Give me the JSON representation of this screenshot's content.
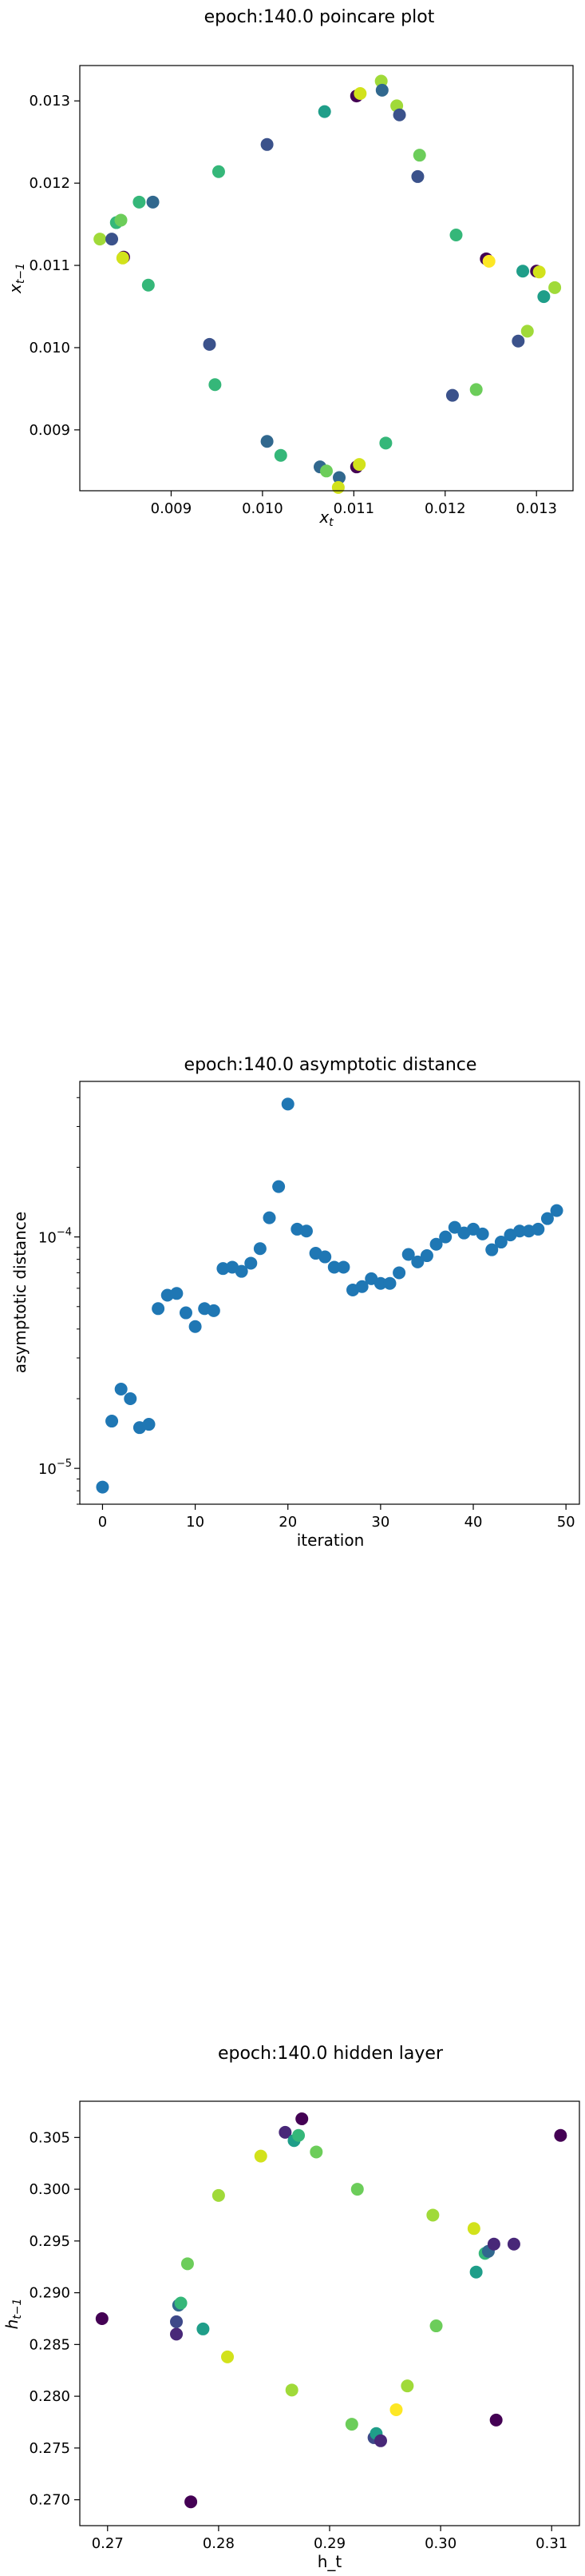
{
  "page": {
    "background": "#ffffff"
  },
  "chart_data": [
    {
      "type": "scatter",
      "title": "epoch:140.0 poincare plot",
      "xlabel": "x_t",
      "ylabel": "x_{t-1}",
      "xlim": [
        0.008,
        0.0134
      ],
      "ylim": [
        0.00826,
        0.01343
      ],
      "xticks": [
        "0.009",
        "0.010",
        "0.011",
        "0.012",
        "0.013"
      ],
      "yticks": [
        "0.009",
        "0.010",
        "0.011",
        "0.012",
        "0.013"
      ],
      "colormap": "viridis",
      "points": [
        {
          "x": 0.00822,
          "y": 0.01132,
          "c": "#a0da39"
        },
        {
          "x": 0.00835,
          "y": 0.01132,
          "c": "#3b528b"
        },
        {
          "x": 0.0084,
          "y": 0.01152,
          "c": "#35b779"
        },
        {
          "x": 0.00845,
          "y": 0.01155,
          "c": "#6ccd5a"
        },
        {
          "x": 0.00848,
          "y": 0.0111,
          "c": "#440154"
        },
        {
          "x": 0.00847,
          "y": 0.01109,
          "c": "#d2e21b"
        },
        {
          "x": 0.00865,
          "y": 0.01177,
          "c": "#35b779"
        },
        {
          "x": 0.0088,
          "y": 0.01177,
          "c": "#31688e"
        },
        {
          "x": 0.00875,
          "y": 0.01076,
          "c": "#35b779"
        },
        {
          "x": 0.00942,
          "y": 0.01004,
          "c": "#3b528b"
        },
        {
          "x": 0.00948,
          "y": 0.00955,
          "c": "#35b779"
        },
        {
          "x": 0.00952,
          "y": 0.01214,
          "c": "#35b779"
        },
        {
          "x": 0.01005,
          "y": 0.01247,
          "c": "#3b528b"
        },
        {
          "x": 0.01005,
          "y": 0.00886,
          "c": "#31688e"
        },
        {
          "x": 0.0102,
          "y": 0.00869,
          "c": "#35b779"
        },
        {
          "x": 0.01068,
          "y": 0.01287,
          "c": "#1f9e89"
        },
        {
          "x": 0.01063,
          "y": 0.00855,
          "c": "#31688e"
        },
        {
          "x": 0.0107,
          "y": 0.0085,
          "c": "#6ccd5a"
        },
        {
          "x": 0.01084,
          "y": 0.00842,
          "c": "#31688e"
        },
        {
          "x": 0.01083,
          "y": 0.0083,
          "c": "#d2e21b"
        },
        {
          "x": 0.01103,
          "y": 0.01306,
          "c": "#440154"
        },
        {
          "x": 0.01107,
          "y": 0.01309,
          "c": "#d2e21b"
        },
        {
          "x": 0.01103,
          "y": 0.00855,
          "c": "#440154"
        },
        {
          "x": 0.01106,
          "y": 0.00858,
          "c": "#d2e21b"
        },
        {
          "x": 0.0113,
          "y": 0.01324,
          "c": "#a0da39"
        },
        {
          "x": 0.01131,
          "y": 0.01313,
          "c": "#31688e"
        },
        {
          "x": 0.01147,
          "y": 0.01294,
          "c": "#a0da39"
        },
        {
          "x": 0.0115,
          "y": 0.01283,
          "c": "#3b528b"
        },
        {
          "x": 0.01135,
          "y": 0.00884,
          "c": "#35b779"
        },
        {
          "x": 0.01172,
          "y": 0.01234,
          "c": "#6ccd5a"
        },
        {
          "x": 0.0117,
          "y": 0.01208,
          "c": "#3b528b"
        },
        {
          "x": 0.01208,
          "y": 0.00942,
          "c": "#3b528b"
        },
        {
          "x": 0.01212,
          "y": 0.01137,
          "c": "#35b779"
        },
        {
          "x": 0.01234,
          "y": 0.00949,
          "c": "#6ccd5a"
        },
        {
          "x": 0.01245,
          "y": 0.01108,
          "c": "#440154"
        },
        {
          "x": 0.01248,
          "y": 0.01105,
          "c": "#fde725"
        },
        {
          "x": 0.0128,
          "y": 0.01008,
          "c": "#3b528b"
        },
        {
          "x": 0.01285,
          "y": 0.01093,
          "c": "#1f9e89"
        },
        {
          "x": 0.0129,
          "y": 0.0102,
          "c": "#a0da39"
        },
        {
          "x": 0.013,
          "y": 0.01093,
          "c": "#440154"
        },
        {
          "x": 0.01303,
          "y": 0.01092,
          "c": "#d2e21b"
        },
        {
          "x": 0.01308,
          "y": 0.01062,
          "c": "#1f9e89"
        },
        {
          "x": 0.0132,
          "y": 0.01073,
          "c": "#a0da39"
        }
      ]
    },
    {
      "type": "scatter",
      "title": "epoch:140.0 asymptotic distance",
      "xlabel": "iteration",
      "ylabel": "asymptotic distance",
      "xlim": [
        -2.45,
        51.45
      ],
      "ylim": [
        7e-06,
        0.00047
      ],
      "yscale": "log",
      "xticks": [
        0,
        10,
        20,
        30,
        40,
        50
      ],
      "yticks": [
        {
          "value": 1e-05,
          "base": "10",
          "exp": "−5"
        },
        {
          "value": 0.0001,
          "base": "10",
          "exp": "−4"
        }
      ],
      "color": "#1f77b4",
      "x": [
        0,
        1,
        2,
        3,
        4,
        5,
        6,
        7,
        8,
        9,
        10,
        11,
        12,
        13,
        14,
        15,
        16,
        17,
        18,
        19,
        20,
        21,
        22,
        23,
        24,
        25,
        26,
        27,
        28,
        29,
        30,
        31,
        32,
        33,
        34,
        35,
        36,
        37,
        38,
        39,
        40,
        41,
        42,
        43,
        44,
        45,
        46,
        47,
        48,
        49
      ],
      "y": [
        8.3e-06,
        1.6e-05,
        2.2e-05,
        2e-05,
        1.5e-05,
        1.55e-05,
        4.9e-05,
        5.6e-05,
        5.7e-05,
        4.7e-05,
        4.1e-05,
        4.9e-05,
        4.8e-05,
        7.3e-05,
        7.4e-05,
        7.1e-05,
        7.7e-05,
        8.9e-05,
        0.000121,
        0.000165,
        0.000375,
        0.000108,
        0.000106,
        8.5e-05,
        8.2e-05,
        7.4e-05,
        7.4e-05,
        5.9e-05,
        6.1e-05,
        6.6e-05,
        6.3e-05,
        6.3e-05,
        7e-05,
        8.4e-05,
        7.8e-05,
        8.3e-05,
        9.3e-05,
        0.0001,
        0.00011,
        0.000104,
        0.000108,
        0.000103,
        8.8e-05,
        9.5e-05,
        0.000102,
        0.000106,
        0.000106,
        0.000108,
        0.00012,
        0.00013
      ]
    },
    {
      "type": "scatter",
      "title": "epoch:140.0 hidden layer",
      "xlabel": "h_t",
      "ylabel": "h_{t-1}",
      "xlim": [
        0.2675,
        0.3125
      ],
      "ylim": [
        0.2675,
        0.3085
      ],
      "xticks": [
        "0.27",
        "0.28",
        "0.29",
        "0.30",
        "0.31"
      ],
      "yticks": [
        "0.270",
        "0.275",
        "0.280",
        "0.285",
        "0.290",
        "0.295",
        "0.300",
        "0.305"
      ],
      "colormap": "viridis",
      "points": [
        {
          "x": 0.2695,
          "y": 0.2875,
          "c": "#440154"
        },
        {
          "x": 0.2775,
          "y": 0.2698,
          "c": "#440154"
        },
        {
          "x": 0.2762,
          "y": 0.286,
          "c": "#482878"
        },
        {
          "x": 0.2762,
          "y": 0.2872,
          "c": "#3e4989"
        },
        {
          "x": 0.2764,
          "y": 0.2888,
          "c": "#31688e"
        },
        {
          "x": 0.2766,
          "y": 0.289,
          "c": "#35b779"
        },
        {
          "x": 0.2772,
          "y": 0.2928,
          "c": "#6ccd5a"
        },
        {
          "x": 0.2786,
          "y": 0.2865,
          "c": "#1f9e89"
        },
        {
          "x": 0.28,
          "y": 0.2994,
          "c": "#a0da39"
        },
        {
          "x": 0.2808,
          "y": 0.2838,
          "c": "#d2e21b"
        },
        {
          "x": 0.2838,
          "y": 0.3032,
          "c": "#d2e21b"
        },
        {
          "x": 0.286,
          "y": 0.3055,
          "c": "#482878"
        },
        {
          "x": 0.2868,
          "y": 0.3047,
          "c": "#1f9e89"
        },
        {
          "x": 0.2872,
          "y": 0.3052,
          "c": "#35b779"
        },
        {
          "x": 0.2866,
          "y": 0.2806,
          "c": "#a0da39"
        },
        {
          "x": 0.2875,
          "y": 0.3068,
          "c": "#440154"
        },
        {
          "x": 0.2888,
          "y": 0.3036,
          "c": "#6ccd5a"
        },
        {
          "x": 0.292,
          "y": 0.2773,
          "c": "#6ccd5a"
        },
        {
          "x": 0.2925,
          "y": 0.3,
          "c": "#6ccd5a"
        },
        {
          "x": 0.294,
          "y": 0.276,
          "c": "#3e4989"
        },
        {
          "x": 0.2942,
          "y": 0.2764,
          "c": "#1f9e89"
        },
        {
          "x": 0.2946,
          "y": 0.2757,
          "c": "#482878"
        },
        {
          "x": 0.296,
          "y": 0.2787,
          "c": "#fde725"
        },
        {
          "x": 0.297,
          "y": 0.281,
          "c": "#a0da39"
        },
        {
          "x": 0.2993,
          "y": 0.2975,
          "c": "#a0da39"
        },
        {
          "x": 0.2996,
          "y": 0.2868,
          "c": "#6ccd5a"
        },
        {
          "x": 0.303,
          "y": 0.2962,
          "c": "#d2e21b"
        },
        {
          "x": 0.3032,
          "y": 0.292,
          "c": "#1f9e89"
        },
        {
          "x": 0.304,
          "y": 0.2938,
          "c": "#35b779"
        },
        {
          "x": 0.3043,
          "y": 0.294,
          "c": "#31688e"
        },
        {
          "x": 0.3048,
          "y": 0.2947,
          "c": "#482878"
        },
        {
          "x": 0.305,
          "y": 0.2777,
          "c": "#440154"
        },
        {
          "x": 0.3066,
          "y": 0.2947,
          "c": "#482878"
        },
        {
          "x": 0.3108,
          "y": 0.3052,
          "c": "#440154"
        }
      ]
    }
  ]
}
